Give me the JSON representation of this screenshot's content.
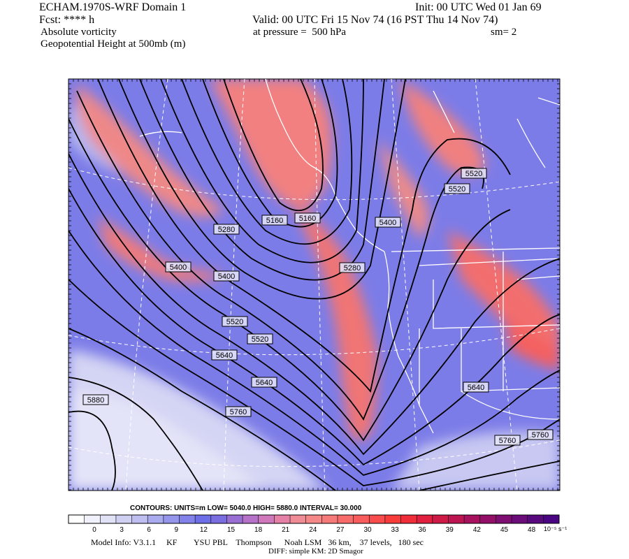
{
  "header": {
    "model": "ECHAM.1970S-WRF Domain 1",
    "fcst": "Fcst: **** h",
    "field1": "Absolute vorticity",
    "field2": "Geopotential Height at 500mb (m)",
    "init": "Init: 00 UTC Wed 01 Jan 69",
    "valid": "Valid: 00 UTC Fri 15 Nov 74 (16 PST Thu 14 Nov 74)",
    "pressure": "at pressure =  500 hPa",
    "smooth": "sm= 2"
  },
  "contour_labels": [
    "5520",
    "5520",
    "5160",
    "5160",
    "5280",
    "5400",
    "5400",
    "5400",
    "5280",
    "5520",
    "5520",
    "5640",
    "5640",
    "5640",
    "5880",
    "5760",
    "5760",
    "5760"
  ],
  "contours_info": {
    "text": "CONTOURS:  UNITS=m  LOW=   5040.0        HIGH=  5880.0        INTERVAL=    30.000",
    "units": "m",
    "low": 5040.0,
    "high": 5880.0,
    "interval": 30.0
  },
  "colorbar": {
    "ticks": [
      "0",
      "3",
      "6",
      "9",
      "12",
      "15",
      "18",
      "21",
      "24",
      "27",
      "30",
      "33",
      "36",
      "39",
      "42",
      "45",
      "48"
    ],
    "units": "10⁻⁵ s⁻¹",
    "colors": [
      "#ffffff",
      "#f1f1fb",
      "#e2e2f7",
      "#d0d0f2",
      "#bebef0",
      "#aaaaef",
      "#9595ec",
      "#8282ea",
      "#6e6ee8",
      "#7a6de0",
      "#9a6fd4",
      "#b672c8",
      "#cf79bc",
      "#e581a6",
      "#f08c96",
      "#f5898a",
      "#f77a7a",
      "#f86b6b",
      "#f95c5c",
      "#f94c4c",
      "#f83c3c",
      "#ef2e3a",
      "#e0203e",
      "#cf1a48",
      "#bc1552",
      "#a8115e",
      "#941068",
      "#7f0e72",
      "#6c0c7a",
      "#58097e",
      "#4a0682"
    ]
  },
  "footer": {
    "model_info": "Model Info: V3.1.1     KF        YSU PBL    Thompson      Noah LSM   36 km,    37 levels,   180 sec",
    "diff": "DIFF: simple KM: 2D Smagor"
  }
}
